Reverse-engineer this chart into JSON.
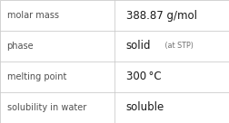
{
  "rows": [
    {
      "label": "molar mass",
      "value": "388.87 g/mol",
      "suffix": null
    },
    {
      "label": "phase",
      "value": "solid",
      "suffix": " (at STP)"
    },
    {
      "label": "melting point",
      "value": "300 °C",
      "suffix": null
    },
    {
      "label": "solubility in water",
      "value": "soluble",
      "suffix": null
    }
  ],
  "bg_color": "#ffffff",
  "border_color": "#cccccc",
  "label_color": "#505050",
  "value_color": "#1a1a1a",
  "suffix_color": "#707070",
  "label_fontsize": 7.0,
  "value_fontsize": 8.5,
  "suffix_fontsize": 5.8,
  "col_split": 0.5
}
